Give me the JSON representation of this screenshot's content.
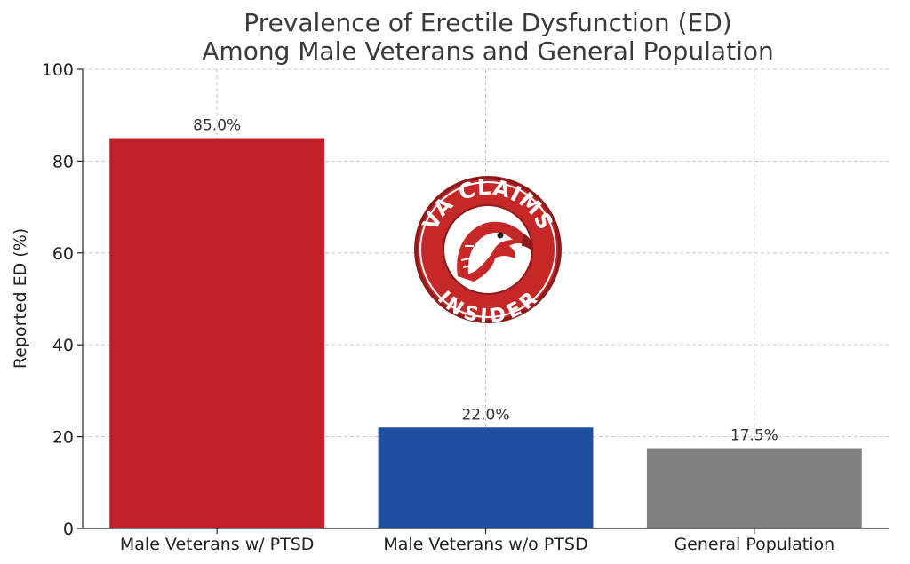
{
  "chart_data": {
    "type": "bar",
    "title": [
      "Prevalence of Erectile Dysfunction (ED)",
      "Among Male Veterans and General Population"
    ],
    "xlabel": "",
    "ylabel": "Reported ED (%)",
    "categories": [
      "Male Veterans w/ PTSD",
      "Male Veterans w/o PTSD",
      "General Population"
    ],
    "values": [
      85.0,
      22.0,
      17.5
    ],
    "data_labels": [
      "85.0%",
      "22.0%",
      "17.5%"
    ],
    "colors": [
      "#c0202a",
      "#1f4fa0",
      "#808080"
    ],
    "ylim": [
      0,
      100
    ],
    "yticks": [
      0,
      20,
      40,
      60,
      80,
      100
    ],
    "grid": true,
    "legend": "none"
  },
  "logo": {
    "top_text": "VA CLAIMS",
    "bottom_text": "INSIDER",
    "icon": "eagle-head-icon",
    "colors": {
      "ring": "#c62828",
      "ring_dark": "#8e1b1b",
      "inner": "#ffffff"
    }
  }
}
